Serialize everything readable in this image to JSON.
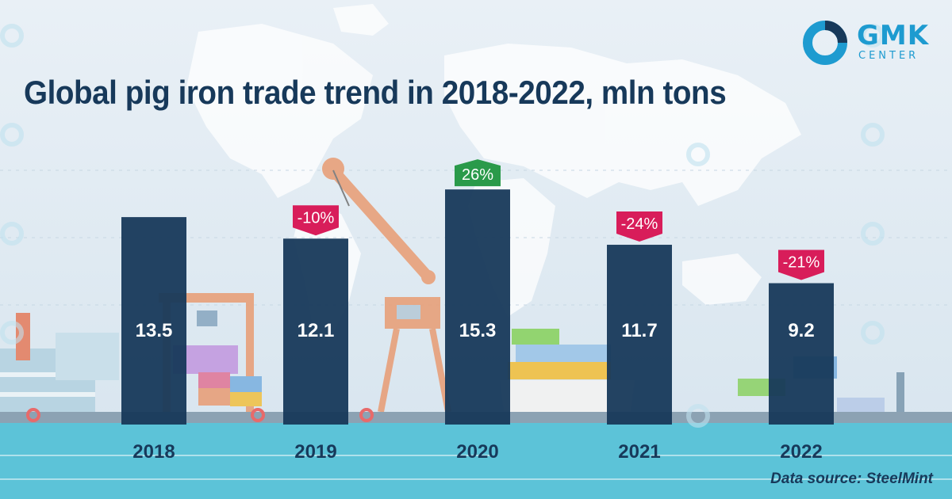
{
  "logo": {
    "name": "GMK",
    "sub": "CENTER"
  },
  "title": "Global pig iron trade trend in 2018-2022, mln tons",
  "source": "Data source: SteelMint",
  "colors": {
    "bar": "#17395a",
    "increase": "#2a9a4a",
    "decrease": "#d81d5a",
    "accent": "#1e9bd0",
    "water": "#5cc3d8"
  },
  "chart_data": {
    "type": "bar",
    "categories": [
      "2018",
      "2019",
      "2020",
      "2021",
      "2022"
    ],
    "values": [
      13.5,
      12.1,
      15.3,
      11.7,
      9.2
    ],
    "value_labels": [
      "13.5",
      "12.1",
      "15.3",
      "11.7",
      "9.2"
    ],
    "changes": [
      null,
      "-10%",
      "26%",
      "-24%",
      "-21%"
    ],
    "change_direction": [
      null,
      "decrease",
      "increase",
      "decrease",
      "decrease"
    ],
    "title": "Global pig iron trade trend in 2018-2022, mln tons",
    "xlabel": "",
    "ylabel": "",
    "unit": "mln tons",
    "grid": false,
    "legend": "none"
  }
}
